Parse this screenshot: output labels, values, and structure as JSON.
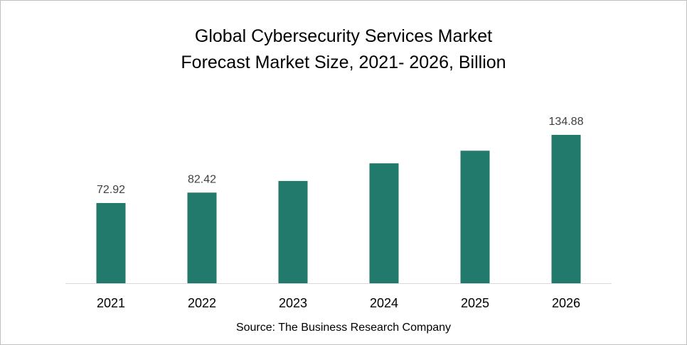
{
  "chart_data": {
    "type": "bar",
    "title": "Global Cybersecurity Services Market",
    "subtitle": "Forecast Market Size, 2021- 2026, Billion",
    "categories": [
      "2021",
      "2022",
      "2023",
      "2024",
      "2025",
      "2026"
    ],
    "series": [
      {
        "values": [
          72.92,
          82.42,
          93.0,
          109.0,
          120.5,
          134.88
        ]
      }
    ],
    "data_labels": [
      "72.92",
      "82.42",
      "",
      "",
      "",
      "134.88"
    ],
    "ylim": [
      0,
      138
    ],
    "grid": false,
    "legend": "none",
    "bar_color": "#217a6c",
    "source": "Source: The Business Research Company"
  }
}
